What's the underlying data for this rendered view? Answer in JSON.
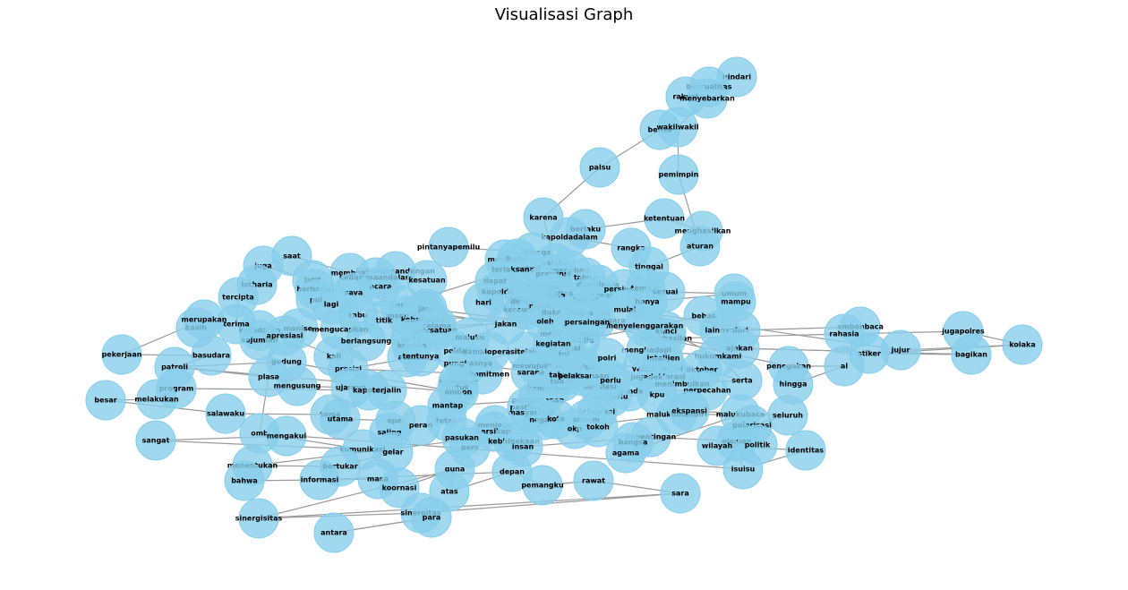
{
  "title": "Visualisasi Graph",
  "colors": {
    "node_fill": "#87ceeb",
    "edge": "#9a9a9a",
    "label": "#000000"
  },
  "nodes": [
    "hindari",
    "berkualitas",
    "rakyat",
    "menyebarkan",
    "berita",
    "wakilwakil",
    "palsu",
    "pemimpin",
    "karena",
    "ketentuan",
    "berlaku",
    "menghasilkan",
    "kapoldadalam",
    "rangka",
    "aturan",
    "pintanyapemilu",
    "sehingga",
    "merusak",
    "harus",
    "selaku",
    "netral",
    "terlaksana",
    "menghng",
    "prevensi",
    "tahun",
    "damaisaya",
    "tinggal",
    "kebangsaandengan",
    "membuat",
    "saat",
    "juga",
    "kebangsaandalam",
    "kesatuan",
    "latif",
    "berharap",
    "acara",
    "saya",
    "lotharia",
    "pol",
    "lagi",
    "tercipta",
    "sore",
    "siap",
    "indah",
    "mengikuti",
    "jaga",
    "dapat",
    "berjalan",
    "integritas",
    "potensi",
    "persiapan",
    "tempat",
    "sesuai",
    "umum",
    "mampu",
    "kapolda",
    "lancar",
    "bersama",
    "proaktif",
    "dengan",
    "kerawanan",
    "hari",
    "mitra",
    "duka",
    "keamanan",
    "hanya",
    "rabu",
    "titik",
    "kebangsaan",
    "selama",
    "persatuan",
    "manise",
    "mengucapkan",
    "kesadaran",
    "sejumlah",
    "terima",
    "kasih",
    "merupakan",
    "pekerjaan",
    "basudara",
    "apresiasi",
    "kali",
    "berlangsung",
    "pada",
    "kepada",
    "maluku",
    "jakan",
    "oleh",
    "penyelenggara",
    "tugas",
    "aman",
    "melaksanakan",
    "pemilu",
    "bebas",
    "lainnya",
    "dari",
    "ambonbaca",
    "rahasia",
    "jugapolres",
    "kolaka",
    "jujur",
    "stiker",
    "bagikan",
    "ajakan",
    "keberhasilan",
    "kunci",
    "mulai",
    "menyelenggarakan",
    "persaingan",
    "penegakan",
    "al",
    "hingga",
    "hukumkami",
    "serta",
    "oktober",
    "kantor",
    "instansi",
    "yakni",
    "menghadapi",
    "intelijen",
    "jugadeklarasi",
    "menimbulkan",
    "perpecahan",
    "pemda",
    "kpu",
    "bawaslu",
    "simulasi",
    "kondusif",
    "sebagai",
    "polri",
    "tni",
    "telah",
    "polda",
    "damaioperasi",
    "pungkasnya",
    "kegiatan",
    "mewujudkan",
    "sarana",
    "kamtibmas",
    "tubuh",
    "tahapan",
    "pelaksanaan",
    "perlu",
    "aktif",
    "tentunya",
    "presisi",
    "berkomitmen",
    "termasuk",
    "untuk",
    "ambon",
    "gedung",
    "patroli",
    "plasa",
    "mengusung",
    "ujarnya",
    "kapolda",
    "terjalin",
    "program",
    "melakukan",
    "besar",
    "salawaku",
    "tema",
    "utama",
    "apel",
    "saling",
    "peran",
    "tetap",
    "mantap",
    "pengamanan",
    "pastikan",
    "masyarakat",
    "negara",
    "kota",
    "integrasi",
    "sistem",
    "okp",
    "tokoh",
    "menjaga",
    "bersikap",
    "pers",
    "pasukan",
    "kebhinekaan",
    "insan",
    "kepentingan",
    "bangsa",
    "agama",
    "malukubaca",
    "malukumandiri",
    "ekspansi",
    "seluruh",
    "polarisasi",
    "elemen",
    "politik",
    "wilayah",
    "identitas",
    "isuisu",
    "omb",
    "mengakui",
    "sangat",
    "komunikasi",
    "gelar",
    "bertukar",
    "menentukan",
    "bahwa",
    "informasi",
    "masa",
    "koornasi",
    "guna",
    "atas",
    "depan",
    "pemangku",
    "rawat",
    "sara",
    "sinergisitas",
    "sinergitas",
    "para",
    "antara"
  ]
}
